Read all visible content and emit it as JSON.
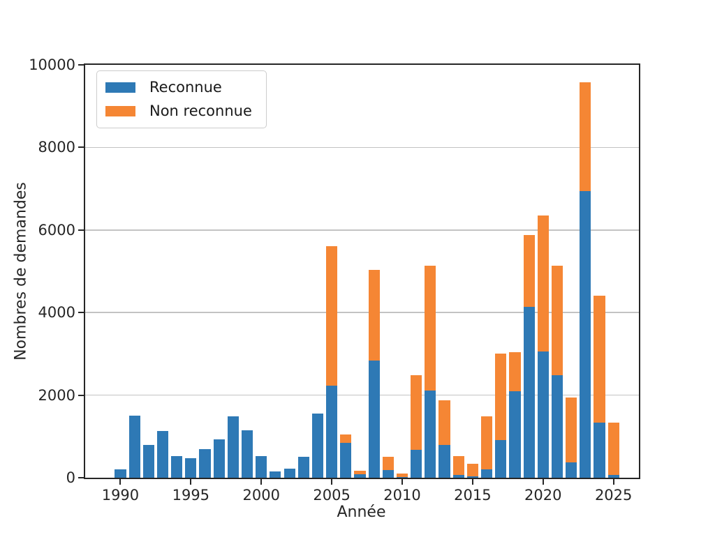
{
  "figure": {
    "background": "#ffffff",
    "axis_color": "#262626",
    "grid_color": "#c3c3c3",
    "xlabel": "Année",
    "ylabel": "Nombres de demandes"
  },
  "legend": {
    "position": "upper-left",
    "items": [
      {
        "label": "Reconnue",
        "color": "#2e79b5"
      },
      {
        "label": "Non reconnue",
        "color": "#f58634"
      }
    ]
  },
  "chart_data": {
    "type": "bar",
    "stacked": true,
    "title": "",
    "xlabel": "Année",
    "ylabel": "Nombres de demandes",
    "xlim": [
      1987.5,
      2026.8
    ],
    "ylim": [
      0,
      10000
    ],
    "xticks": [
      1990,
      1995,
      2000,
      2005,
      2010,
      2015,
      2020,
      2025
    ],
    "yticks": [
      0,
      2000,
      4000,
      6000,
      8000,
      10000
    ],
    "grid": "horizontal",
    "bar_width_years": 0.8,
    "legend_position": "upper-left",
    "categories": [
      1990,
      1991,
      1992,
      1993,
      1994,
      1995,
      1996,
      1997,
      1998,
      1999,
      2000,
      2001,
      2002,
      2003,
      2004,
      2005,
      2006,
      2007,
      2008,
      2009,
      2010,
      2011,
      2012,
      2013,
      2014,
      2015,
      2016,
      2017,
      2018,
      2019,
      2020,
      2021,
      2022,
      2023,
      2024,
      2025
    ],
    "series": [
      {
        "name": "Reconnue",
        "color": "#2e79b5",
        "values": [
          210,
          1510,
          800,
          1130,
          520,
          470,
          690,
          930,
          1480,
          1150,
          530,
          160,
          220,
          500,
          1550,
          2230,
          850,
          80,
          2830,
          190,
          10,
          670,
          2120,
          790,
          70,
          30,
          200,
          910,
          2090,
          4140,
          3060,
          2490,
          370,
          6950,
          1330,
          70
        ]
      },
      {
        "name": "Non reconnue",
        "color": "#f58634",
        "values": [
          0,
          0,
          0,
          0,
          0,
          0,
          0,
          0,
          0,
          0,
          0,
          0,
          0,
          0,
          0,
          3380,
          190,
          95,
          2200,
          310,
          90,
          1820,
          3010,
          1080,
          460,
          310,
          1280,
          2090,
          950,
          1740,
          3290,
          2640,
          1570,
          2620,
          3080,
          1260
        ]
      }
    ]
  }
}
